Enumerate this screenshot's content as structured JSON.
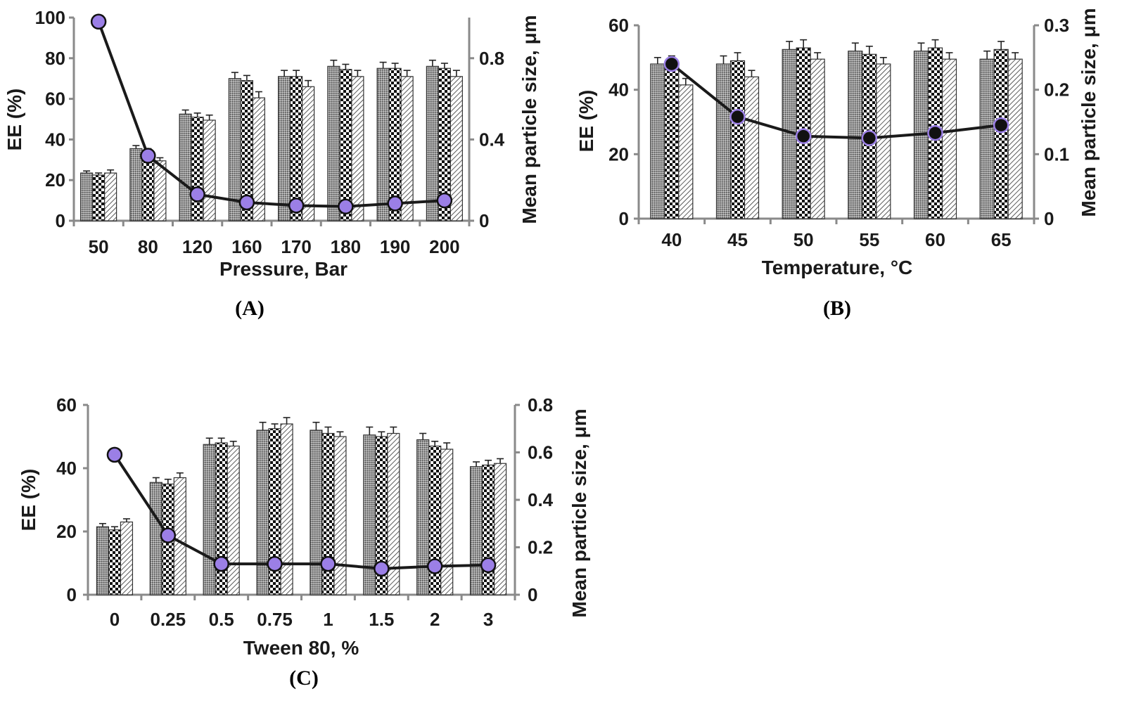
{
  "colors": {
    "axis": "#8a8a8a",
    "line": "#1a1a1a",
    "marker_purple": "#9b7fe6",
    "marker_dark": "#111111"
  },
  "chart_data": [
    {
      "type": "bar",
      "panel_label": "(A)",
      "xlabel": "Pressure, Bar",
      "ylabel": "EE (%)",
      "y2label": "Mean particle size, μm",
      "categories": [
        "50",
        "80",
        "120",
        "160",
        "170",
        "180",
        "190",
        "200"
      ],
      "ylim": [
        0,
        100
      ],
      "yticks": [
        "0",
        "20",
        "40",
        "60",
        "80",
        "100"
      ],
      "y2lim": [
        0,
        1.0
      ],
      "y2ticks": [
        "0",
        "0.4",
        "0.8"
      ],
      "y2tick_values": [
        0,
        0.4,
        0.8
      ],
      "series": [
        {
          "pattern": "dense-dots",
          "values": [
            23.5,
            35.5,
            52.5,
            70,
            71,
            76,
            75,
            76
          ],
          "errors": [
            1,
            1.5,
            2,
            3,
            3,
            3,
            3,
            3
          ]
        },
        {
          "pattern": "checker",
          "values": [
            22.5,
            34,
            51,
            69,
            71,
            74.5,
            75,
            75
          ],
          "errors": [
            1,
            1.5,
            2,
            2.5,
            3,
            2.5,
            2.5,
            2.5
          ]
        },
        {
          "pattern": "diagonal",
          "values": [
            23.5,
            29.5,
            49.5,
            60.5,
            66,
            71,
            71,
            71
          ],
          "errors": [
            1.5,
            1.5,
            2.5,
            3,
            3,
            3,
            3,
            3
          ]
        }
      ],
      "line": {
        "values": [
          0.98,
          0.32,
          0.13,
          0.09,
          0.075,
          0.07,
          0.085,
          0.1
        ],
        "marker": "purple"
      }
    },
    {
      "type": "bar",
      "panel_label": "(B)",
      "xlabel": "Temperature, °C",
      "ylabel": "EE (%)",
      "y2label": "Mean particle  size, μm",
      "categories": [
        "40",
        "45",
        "50",
        "55",
        "60",
        "65"
      ],
      "ylim": [
        0,
        60
      ],
      "yticks": [
        "0",
        "20",
        "40",
        "60"
      ],
      "y2lim": [
        0,
        0.3
      ],
      "y2ticks": [
        "0",
        "0.1",
        "0.2",
        "0.3"
      ],
      "y2tick_values": [
        0,
        0.1,
        0.2,
        0.3
      ],
      "series": [
        {
          "pattern": "dense-dots",
          "values": [
            48,
            48,
            52.5,
            52,
            52,
            49.5
          ],
          "errors": [
            2,
            2.5,
            2.5,
            2.5,
            2.5,
            2.5
          ]
        },
        {
          "pattern": "checker",
          "values": [
            48.5,
            49,
            53,
            51,
            53,
            52.5
          ],
          "errors": [
            2,
            2.5,
            2.5,
            2.5,
            2.5,
            2.5
          ]
        },
        {
          "pattern": "diagonal",
          "values": [
            41.5,
            44,
            49.5,
            48,
            49.5,
            49.5
          ],
          "errors": [
            2,
            2,
            2,
            2,
            2,
            2
          ]
        }
      ],
      "line": {
        "values": [
          0.24,
          0.158,
          0.128,
          0.125,
          0.133,
          0.145
        ],
        "marker": "dark"
      }
    },
    {
      "type": "bar",
      "panel_label": "(C)",
      "xlabel": "Tween 80, %",
      "ylabel": "EE (%)",
      "y2label": "Mean particle  size, μm",
      "categories": [
        "0",
        "0.25",
        "0.5",
        "0.75",
        "1",
        "1.5",
        "2",
        "3"
      ],
      "ylim": [
        0,
        60
      ],
      "yticks": [
        "0",
        "20",
        "40",
        "60"
      ],
      "y2lim": [
        0,
        0.8
      ],
      "y2ticks": [
        "0",
        "0.2",
        "0.4",
        "0.6",
        "0.8"
      ],
      "y2tick_values": [
        0,
        0.2,
        0.4,
        0.6,
        0.8
      ],
      "series": [
        {
          "pattern": "dense-dots",
          "values": [
            21.5,
            35.5,
            47.5,
            52,
            52,
            50.5,
            49,
            40.5
          ],
          "errors": [
            1,
            1.5,
            2,
            2.5,
            2.5,
            2.5,
            2,
            1.5
          ]
        },
        {
          "pattern": "checker",
          "values": [
            20.5,
            35,
            48,
            52.5,
            51,
            50,
            47,
            41
          ],
          "errors": [
            1,
            1.5,
            1.5,
            1.5,
            2,
            1.5,
            1.5,
            1.5
          ]
        },
        {
          "pattern": "diagonal",
          "values": [
            23,
            37,
            47,
            54,
            50,
            51,
            46,
            41.5
          ],
          "errors": [
            1,
            1.5,
            1.5,
            2,
            1.5,
            2,
            2,
            1.5
          ]
        }
      ],
      "line": {
        "values": [
          0.59,
          0.25,
          0.13,
          0.13,
          0.13,
          0.11,
          0.12,
          0.125
        ],
        "marker": "purple"
      }
    }
  ]
}
